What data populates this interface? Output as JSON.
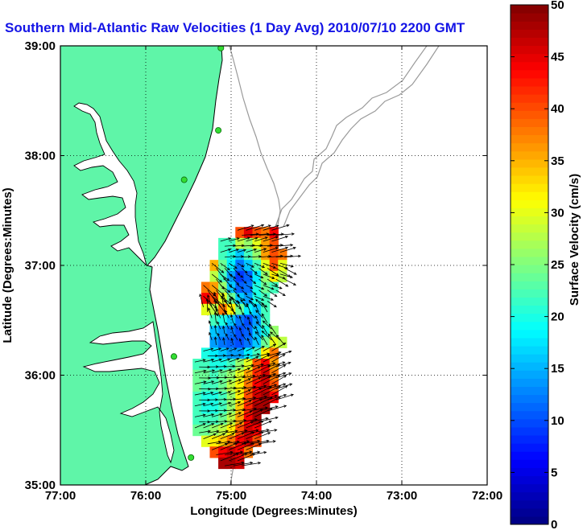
{
  "chart_data": {
    "type": "heatmap",
    "title": "Southern Mid-Atlantic Raw Velocities (1 Day Avg) 2010/07/10 2200 GMT",
    "xlabel": "Longitude (Degrees:Minutes)",
    "ylabel": "Latitude (Degrees:Minutes)",
    "xlim": [
      -77,
      -72
    ],
    "ylim": [
      35,
      39
    ],
    "x_ticks": [
      {
        "value": -77,
        "label": "77:00"
      },
      {
        "value": -76,
        "label": "76:00"
      },
      {
        "value": -75,
        "label": "75:00"
      },
      {
        "value": -74,
        "label": "74:00"
      },
      {
        "value": -73,
        "label": "73:00"
      },
      {
        "value": -72,
        "label": "72:00"
      }
    ],
    "y_ticks": [
      {
        "value": 35,
        "label": "35:00"
      },
      {
        "value": 36,
        "label": "36:00"
      },
      {
        "value": 37,
        "label": "37:00"
      },
      {
        "value": 38,
        "label": "38:00"
      },
      {
        "value": 39,
        "label": "39:00"
      }
    ],
    "grid": "dotted",
    "colorbar": {
      "label": "Surface Velocity (cm/s)",
      "range": [
        0,
        50
      ],
      "ticks": [
        0,
        5,
        10,
        15,
        20,
        25,
        30,
        35,
        40,
        45,
        50
      ],
      "colormap": "jet",
      "placement": "right"
    },
    "land_color": "#5ff5a8",
    "coast_color": "#000000",
    "bathymetry_color": "#9a9a9a",
    "vector_color": "#000000",
    "stations": [
      {
        "lon": -75.12,
        "lat": 38.98
      },
      {
        "lon": -75.15,
        "lat": 38.23
      },
      {
        "lon": -75.55,
        "lat": 37.78
      },
      {
        "lon": -75.67,
        "lat": 36.17
      },
      {
        "lon": -75.47,
        "lat": 35.25
      }
    ],
    "velocity_field": {
      "grid_spacing_deg": 0.1,
      "rows": [
        {
          "lat": 37.3,
          "lon_start": -74.9,
          "speeds": [
            40,
            45,
            40,
            38,
            44
          ]
        },
        {
          "lat": 37.2,
          "lon_start": -75.1,
          "speeds": [
            22,
            22,
            28,
            26,
            30,
            36,
            40
          ]
        },
        {
          "lat": 37.1,
          "lon_start": -75.1,
          "speeds": [
            22,
            20,
            16,
            22,
            26,
            36,
            40,
            38
          ]
        },
        {
          "lat": 37.0,
          "lon_start": -75.2,
          "speeds": [
            35,
            24,
            18,
            12,
            16,
            22,
            30,
            40,
            30
          ]
        },
        {
          "lat": 36.9,
          "lon_start": -75.2,
          "speeds": [
            28,
            22,
            14,
            9,
            11,
            18,
            26,
            32,
            28
          ]
        },
        {
          "lat": 36.8,
          "lon_start": -75.3,
          "speeds": [
            38,
            36,
            26,
            16,
            11,
            12,
            20,
            24,
            22
          ]
        },
        {
          "lat": 36.7,
          "lon_start": -75.3,
          "speeds": [
            44,
            40,
            30,
            24,
            16,
            14,
            20,
            22
          ]
        },
        {
          "lat": 36.6,
          "lon_start": -75.3,
          "speeds": [
            30,
            28,
            38,
            32,
            24,
            18,
            16,
            22
          ]
        },
        {
          "lat": 36.5,
          "lon_start": -75.2,
          "speeds": [
            22,
            20,
            16,
            12,
            10,
            14,
            22
          ]
        },
        {
          "lat": 36.4,
          "lon_start": -75.2,
          "speeds": [
            16,
            14,
            12,
            10,
            11,
            16,
            20,
            26
          ]
        },
        {
          "lat": 36.3,
          "lon_start": -75.2,
          "speeds": [
            14,
            12,
            11,
            10,
            12,
            16,
            24,
            30,
            28
          ]
        },
        {
          "lat": 36.2,
          "lon_start": -75.3,
          "speeds": [
            20,
            18,
            16,
            14,
            14,
            18,
            22,
            32,
            38
          ]
        },
        {
          "lat": 36.1,
          "lon_start": -75.4,
          "speeds": [
            22,
            22,
            20,
            20,
            22,
            26,
            30,
            40,
            44,
            36
          ]
        },
        {
          "lat": 36.0,
          "lon_start": -75.4,
          "speeds": [
            24,
            24,
            22,
            24,
            26,
            30,
            36,
            42,
            46,
            38
          ]
        },
        {
          "lat": 35.9,
          "lon_start": -75.4,
          "speeds": [
            24,
            22,
            22,
            24,
            28,
            32,
            38,
            44,
            46,
            40
          ]
        },
        {
          "lat": 35.8,
          "lon_start": -75.4,
          "speeds": [
            22,
            20,
            20,
            22,
            26,
            32,
            40,
            46,
            48,
            44
          ]
        },
        {
          "lat": 35.7,
          "lon_start": -75.4,
          "speeds": [
            22,
            20,
            20,
            22,
            26,
            34,
            42,
            48,
            48
          ]
        },
        {
          "lat": 35.6,
          "lon_start": -75.4,
          "speeds": [
            22,
            22,
            22,
            24,
            28,
            36,
            44,
            48
          ]
        },
        {
          "lat": 35.5,
          "lon_start": -75.4,
          "speeds": [
            24,
            24,
            26,
            28,
            32,
            40,
            46,
            44
          ]
        },
        {
          "lat": 35.4,
          "lon_start": -75.3,
          "speeds": [
            30,
            32,
            34,
            38,
            44,
            46,
            40
          ]
        },
        {
          "lat": 35.3,
          "lon_start": -75.2,
          "speeds": [
            40,
            44,
            46,
            44,
            38
          ]
        },
        {
          "lat": 35.2,
          "lon_start": -75.1,
          "speeds": [
            48,
            48,
            46
          ]
        }
      ]
    }
  }
}
